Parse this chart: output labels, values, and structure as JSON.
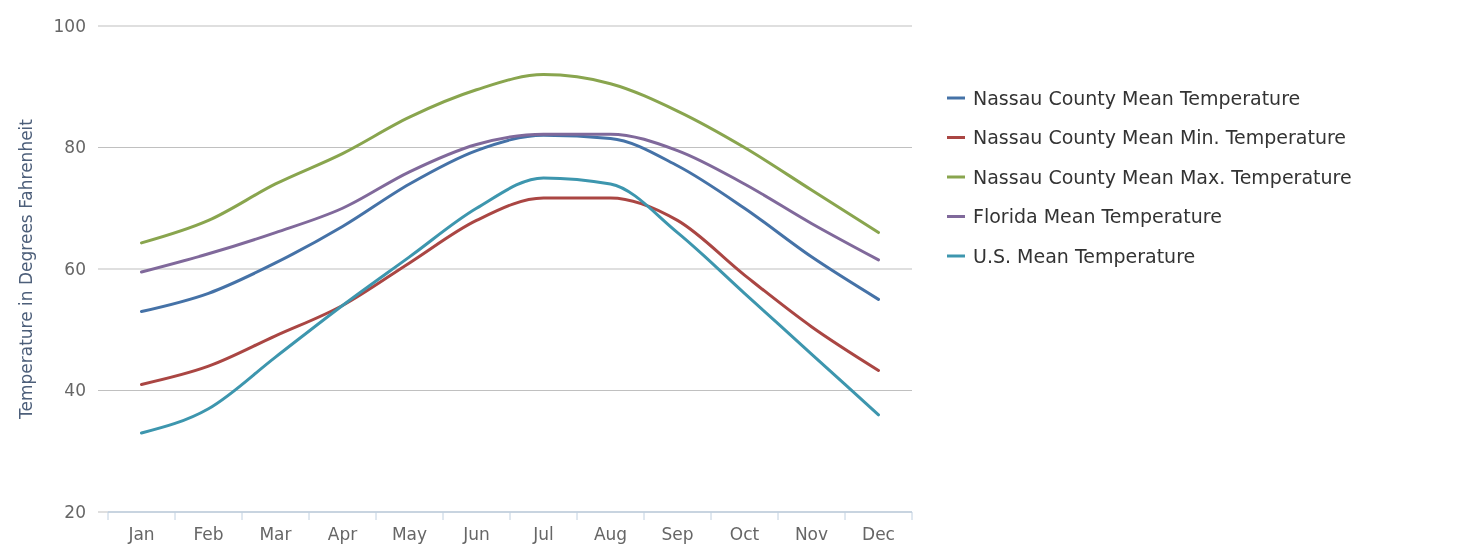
{
  "chart_data": {
    "type": "line",
    "ylabel": "Temperature in Degrees Fahrenheit",
    "categories": [
      "Jan",
      "Feb",
      "Mar",
      "Apr",
      "May",
      "Jun",
      "Jul",
      "Aug",
      "Sep",
      "Oct",
      "Nov",
      "Dec"
    ],
    "series": [
      {
        "name": "Nassau County Mean Temperature",
        "color": "#4572a7",
        "values": [
          53,
          56,
          61,
          67,
          74,
          79.5,
          82,
          81.5,
          77,
          70,
          62,
          55
        ]
      },
      {
        "name": "Nassau County Mean Min. Temperature",
        "color": "#aa4643",
        "values": [
          41,
          44,
          49,
          54,
          61,
          68,
          71.7,
          71.7,
          68,
          59,
          50.5,
          43.3
        ]
      },
      {
        "name": "Nassau County Mean Max. Temperature",
        "color": "#89a54e",
        "values": [
          64.3,
          68,
          74,
          79,
          85,
          89.5,
          92,
          90.5,
          86,
          80,
          73,
          66
        ]
      },
      {
        "name": "Florida Mean Temperature",
        "color": "#80699b",
        "values": [
          59.5,
          62.5,
          66,
          70,
          76,
          80.5,
          82.2,
          82.2,
          79.5,
          74,
          67.5,
          61.5
        ]
      },
      {
        "name": "U.S. Mean Temperature",
        "color": "#3d96ae",
        "values": [
          33,
          37,
          45.5,
          54,
          62,
          70,
          75,
          74,
          66,
          56,
          46,
          36
        ]
      }
    ],
    "ylim": [
      20,
      100
    ],
    "yticks": [
      20,
      40,
      60,
      80,
      100
    ],
    "grid": "y",
    "legend": "right",
    "marker": "none",
    "line_style": "solid"
  }
}
